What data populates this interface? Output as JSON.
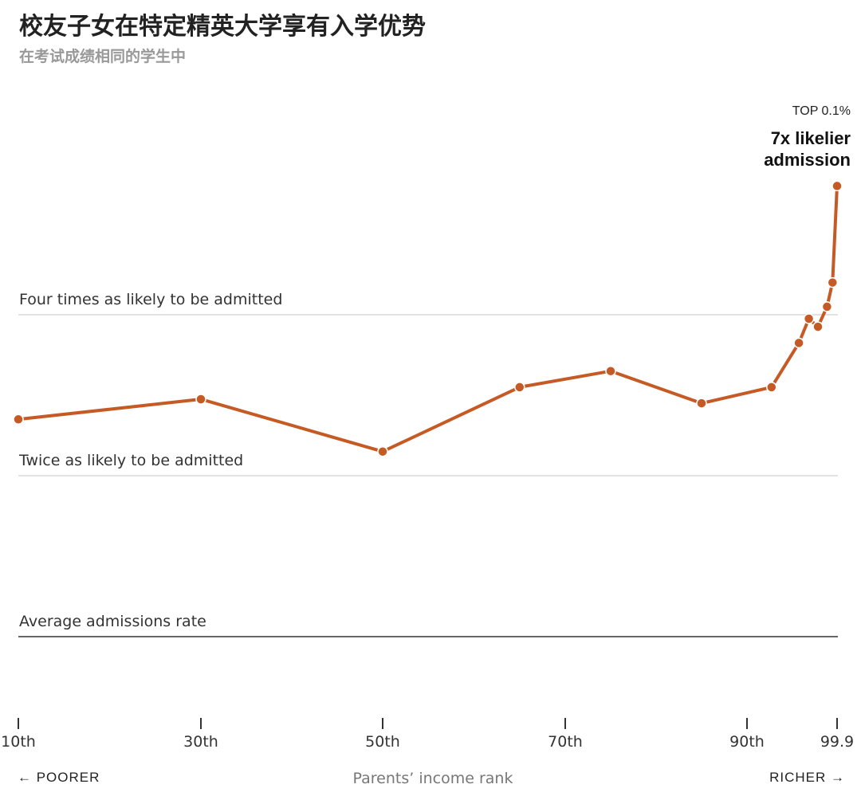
{
  "header": {
    "title": "校友子女在特定精英大学享有入学优势",
    "subtitle": "在考试成绩相同的学生中"
  },
  "annotation": {
    "top_label": "TOP 0.1%",
    "main_line1": "7x likelier",
    "main_line2": "admission"
  },
  "reference_lines": [
    {
      "label": "Four times as likely to be admitted",
      "value": 4
    },
    {
      "label": "Twice as likely to be admitted",
      "value": 2
    },
    {
      "label": "Average admissions rate",
      "value": 0
    }
  ],
  "footer": {
    "left": "← POORER",
    "center": "Parents’ income rank",
    "right": "RICHER →"
  },
  "colors": {
    "series": "#c65a25",
    "gridline": "#d9d9d9",
    "baseline": "#333333"
  },
  "chart_data": {
    "type": "line",
    "title": "校友子女在特定精英大学享有入学优势",
    "subtitle": "在考试成绩相同的学生中",
    "xlabel": "Parents’ income rank",
    "ylabel": "",
    "x_ticks": [
      {
        "value": 10,
        "label": "10th"
      },
      {
        "value": 30,
        "label": "30th"
      },
      {
        "value": 50,
        "label": "50th"
      },
      {
        "value": 70,
        "label": "70th"
      },
      {
        "value": 90,
        "label": "90th"
      },
      {
        "value": 99.9,
        "label": "99.9"
      }
    ],
    "series": [
      {
        "points": [
          {
            "x": 10,
            "y": 2.7
          },
          {
            "x": 30,
            "y": 2.95
          },
          {
            "x": 50,
            "y": 2.3
          },
          {
            "x": 65,
            "y": 3.1
          },
          {
            "x": 75,
            "y": 3.3
          },
          {
            "x": 85,
            "y": 2.9
          },
          {
            "x": 92.7,
            "y": 3.1
          },
          {
            "x": 95.7,
            "y": 3.65
          },
          {
            "x": 96.8,
            "y": 3.95
          },
          {
            "x": 97.8,
            "y": 3.85
          },
          {
            "x": 98.8,
            "y": 4.1
          },
          {
            "x": 99.4,
            "y": 4.4
          },
          {
            "x": 99.9,
            "y": 5.6
          }
        ]
      }
    ],
    "grid": true,
    "legend": "none"
  }
}
